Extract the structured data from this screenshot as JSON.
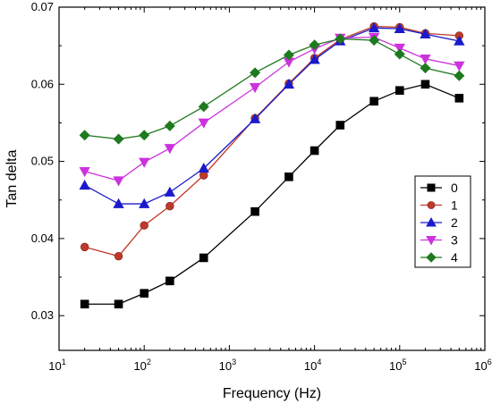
{
  "chart_data": {
    "type": "line",
    "xscale": "log",
    "xlabel": "Frequency (Hz)",
    "ylabel": "Tan delta",
    "xlim": [
      10,
      1000000
    ],
    "ylim": [
      0.0255,
      0.07
    ],
    "xticks": [
      10,
      100,
      1000,
      10000,
      100000,
      1000000
    ],
    "xtick_labels": [
      {
        "base": "10",
        "exp": "1"
      },
      {
        "base": "10",
        "exp": "2"
      },
      {
        "base": "10",
        "exp": "3"
      },
      {
        "base": "10",
        "exp": "4"
      },
      {
        "base": "10",
        "exp": "5"
      },
      {
        "base": "10",
        "exp": "6"
      }
    ],
    "yticks": [
      0.03,
      0.04,
      0.05,
      0.06,
      0.07
    ],
    "ytick_labels": [
      "0.03",
      "0.04",
      "0.05",
      "0.06",
      "0.07"
    ],
    "grid": false,
    "legend_position": "right",
    "x": [
      20,
      50,
      100,
      200,
      500,
      2000,
      5000,
      10000,
      20000,
      50000,
      100000,
      200000,
      500000
    ],
    "series": [
      {
        "name": "0",
        "color": "#000000",
        "marker": "square",
        "values": [
          0.0315,
          0.0315,
          0.0329,
          0.0345,
          0.0375,
          0.0435,
          0.048,
          0.0514,
          0.0547,
          0.0578,
          0.0592,
          0.06,
          0.0582
        ]
      },
      {
        "name": "1",
        "color": "#c0392b",
        "marker": "circle",
        "values": [
          0.0389,
          0.0377,
          0.0417,
          0.0442,
          0.0482,
          0.0556,
          0.0601,
          0.0634,
          0.0658,
          0.0675,
          0.0674,
          0.0666,
          0.0663
        ]
      },
      {
        "name": "2",
        "color": "#1a1acc",
        "marker": "triangle-up",
        "values": [
          0.0469,
          0.0445,
          0.0445,
          0.046,
          0.0491,
          0.0555,
          0.06,
          0.0632,
          0.0656,
          0.0673,
          0.0672,
          0.0665,
          0.0656
        ]
      },
      {
        "name": "3",
        "color": "#cc33dd",
        "marker": "triangle-down",
        "values": [
          0.0487,
          0.0475,
          0.0499,
          0.0517,
          0.055,
          0.0596,
          0.0629,
          0.0646,
          0.066,
          0.0661,
          0.0647,
          0.0633,
          0.0624
        ]
      },
      {
        "name": "4",
        "color": "#1e7a1e",
        "marker": "diamond",
        "values": [
          0.0534,
          0.0529,
          0.0534,
          0.0546,
          0.0571,
          0.0615,
          0.0638,
          0.0651,
          0.0659,
          0.0657,
          0.0639,
          0.0621,
          0.0611
        ]
      }
    ]
  }
}
